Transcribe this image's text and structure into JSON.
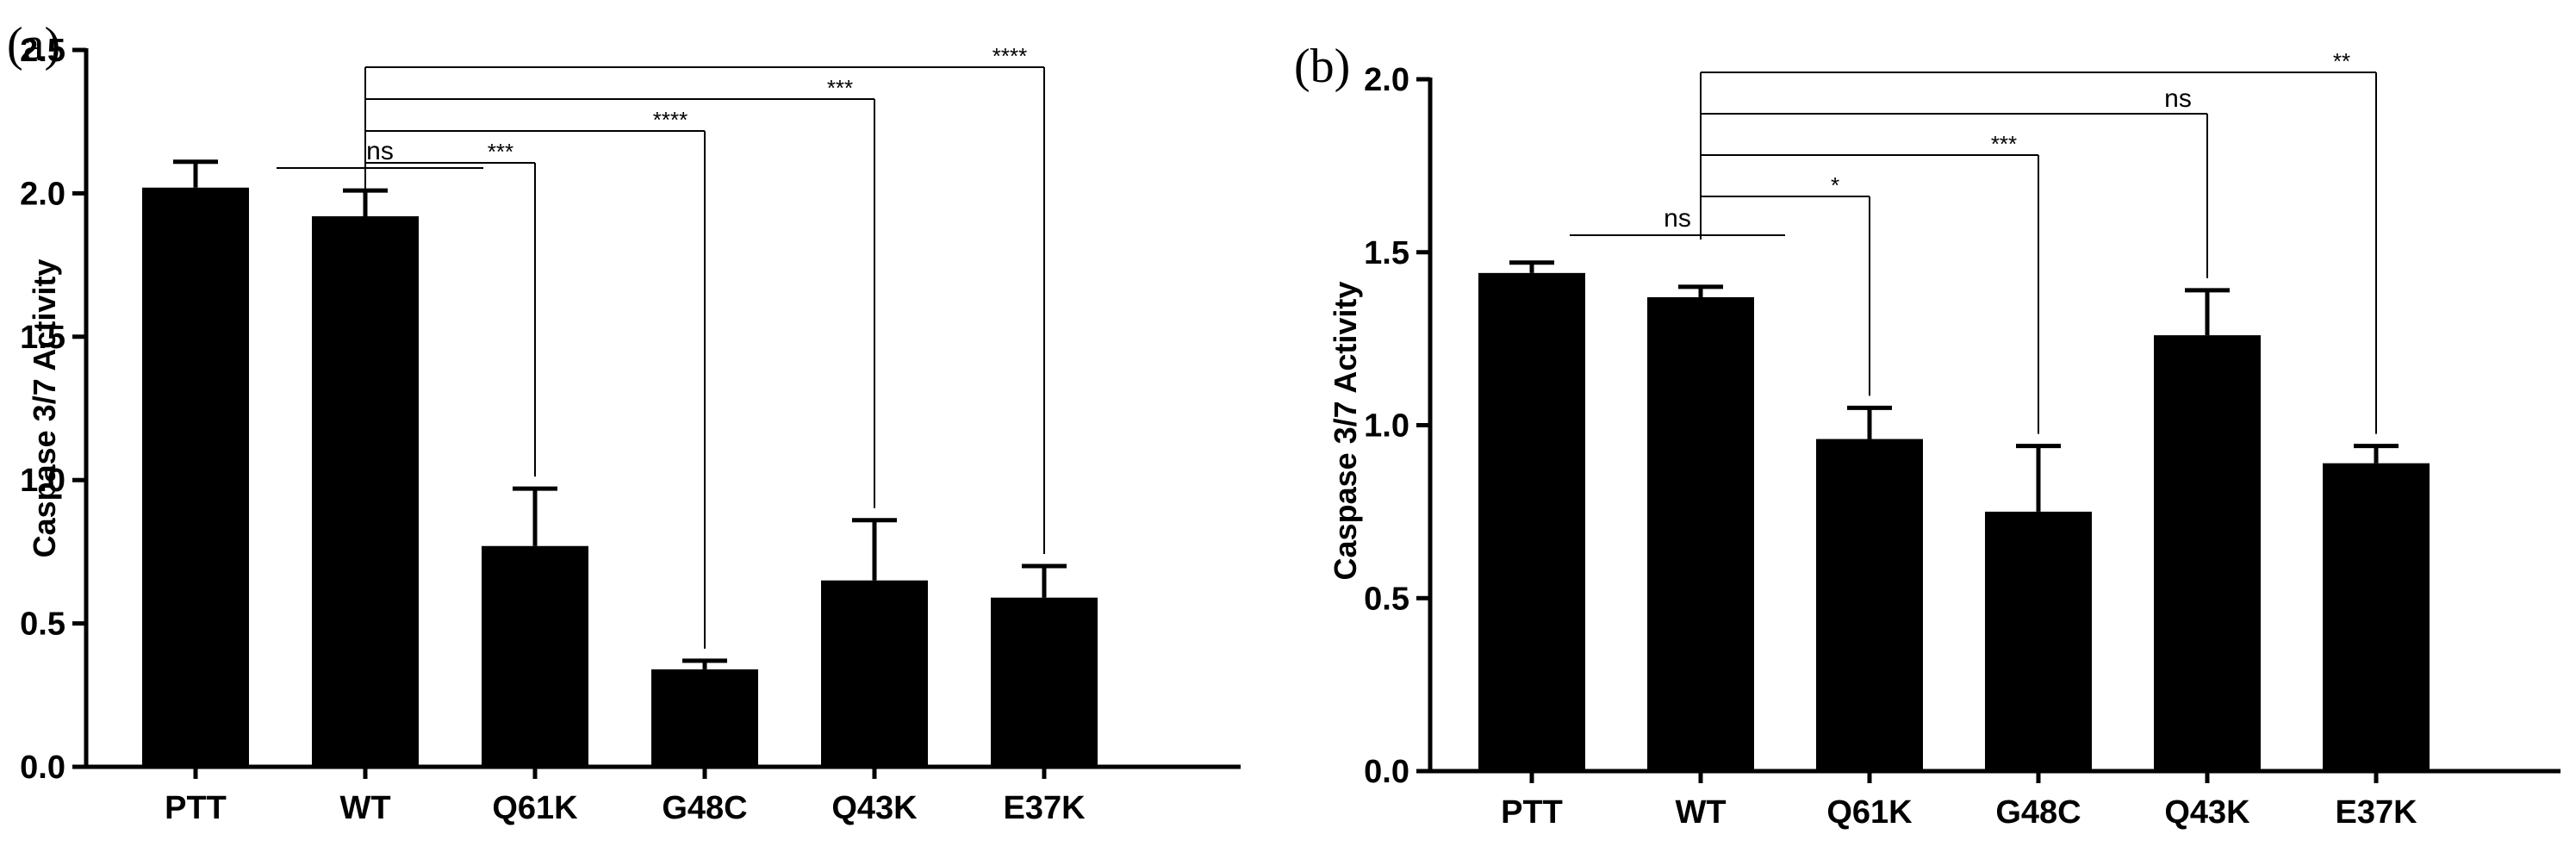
{
  "chart_data": [
    {
      "type": "bar",
      "panel": "(a)",
      "title": "",
      "xlabel": "",
      "ylabel": "Caspase 3/7  Activity",
      "ylim": [
        0,
        2.5
      ],
      "yticks": [
        "0.0",
        "0.5",
        "1.0",
        "1.5",
        "2.0",
        "2.5"
      ],
      "yticks_values": [
        0,
        0.5,
        1.0,
        1.5,
        2.0,
        2.5
      ],
      "categories": [
        "PTT",
        "WT",
        "Q61K",
        "G48C",
        "Q43K",
        "E37K"
      ],
      "values": [
        2.02,
        1.92,
        0.77,
        0.34,
        0.65,
        0.59
      ],
      "errors": [
        0.09,
        0.09,
        0.2,
        0.03,
        0.21,
        0.11
      ],
      "bar_color": "#000000",
      "significance": [
        {
          "from": "PTT",
          "to": "WT",
          "label": "ns"
        },
        {
          "from": "WT",
          "to": "Q61K",
          "label": "***"
        },
        {
          "from": "WT",
          "to": "G48C",
          "label": "****"
        },
        {
          "from": "WT",
          "to": "Q43K",
          "label": "***"
        },
        {
          "from": "WT",
          "to": "E37K",
          "label": "****"
        }
      ]
    },
    {
      "type": "bar",
      "panel": "(b)",
      "title": "",
      "xlabel": "",
      "ylabel": "Caspase 3/7  Activity",
      "ylim": [
        0,
        2.0
      ],
      "yticks": [
        "0.0",
        "0.5",
        "1.0",
        "1.5",
        "2.0"
      ],
      "yticks_values": [
        0,
        0.5,
        1.0,
        1.5,
        2.0
      ],
      "categories": [
        "PTT",
        "WT",
        "Q61K",
        "G48C",
        "Q43K",
        "E37K"
      ],
      "values": [
        1.44,
        1.37,
        0.96,
        0.75,
        1.26,
        0.89
      ],
      "errors": [
        0.03,
        0.03,
        0.09,
        0.19,
        0.13,
        0.05
      ],
      "bar_color": "#000000",
      "significance": [
        {
          "from": "PTT",
          "to": "WT",
          "label": "ns"
        },
        {
          "from": "WT",
          "to": "Q61K",
          "label": "*"
        },
        {
          "from": "WT",
          "to": "G48C",
          "label": "***"
        },
        {
          "from": "WT",
          "to": "Q43K",
          "label": "ns"
        },
        {
          "from": "WT",
          "to": "E37K",
          "label": "**"
        }
      ]
    }
  ]
}
